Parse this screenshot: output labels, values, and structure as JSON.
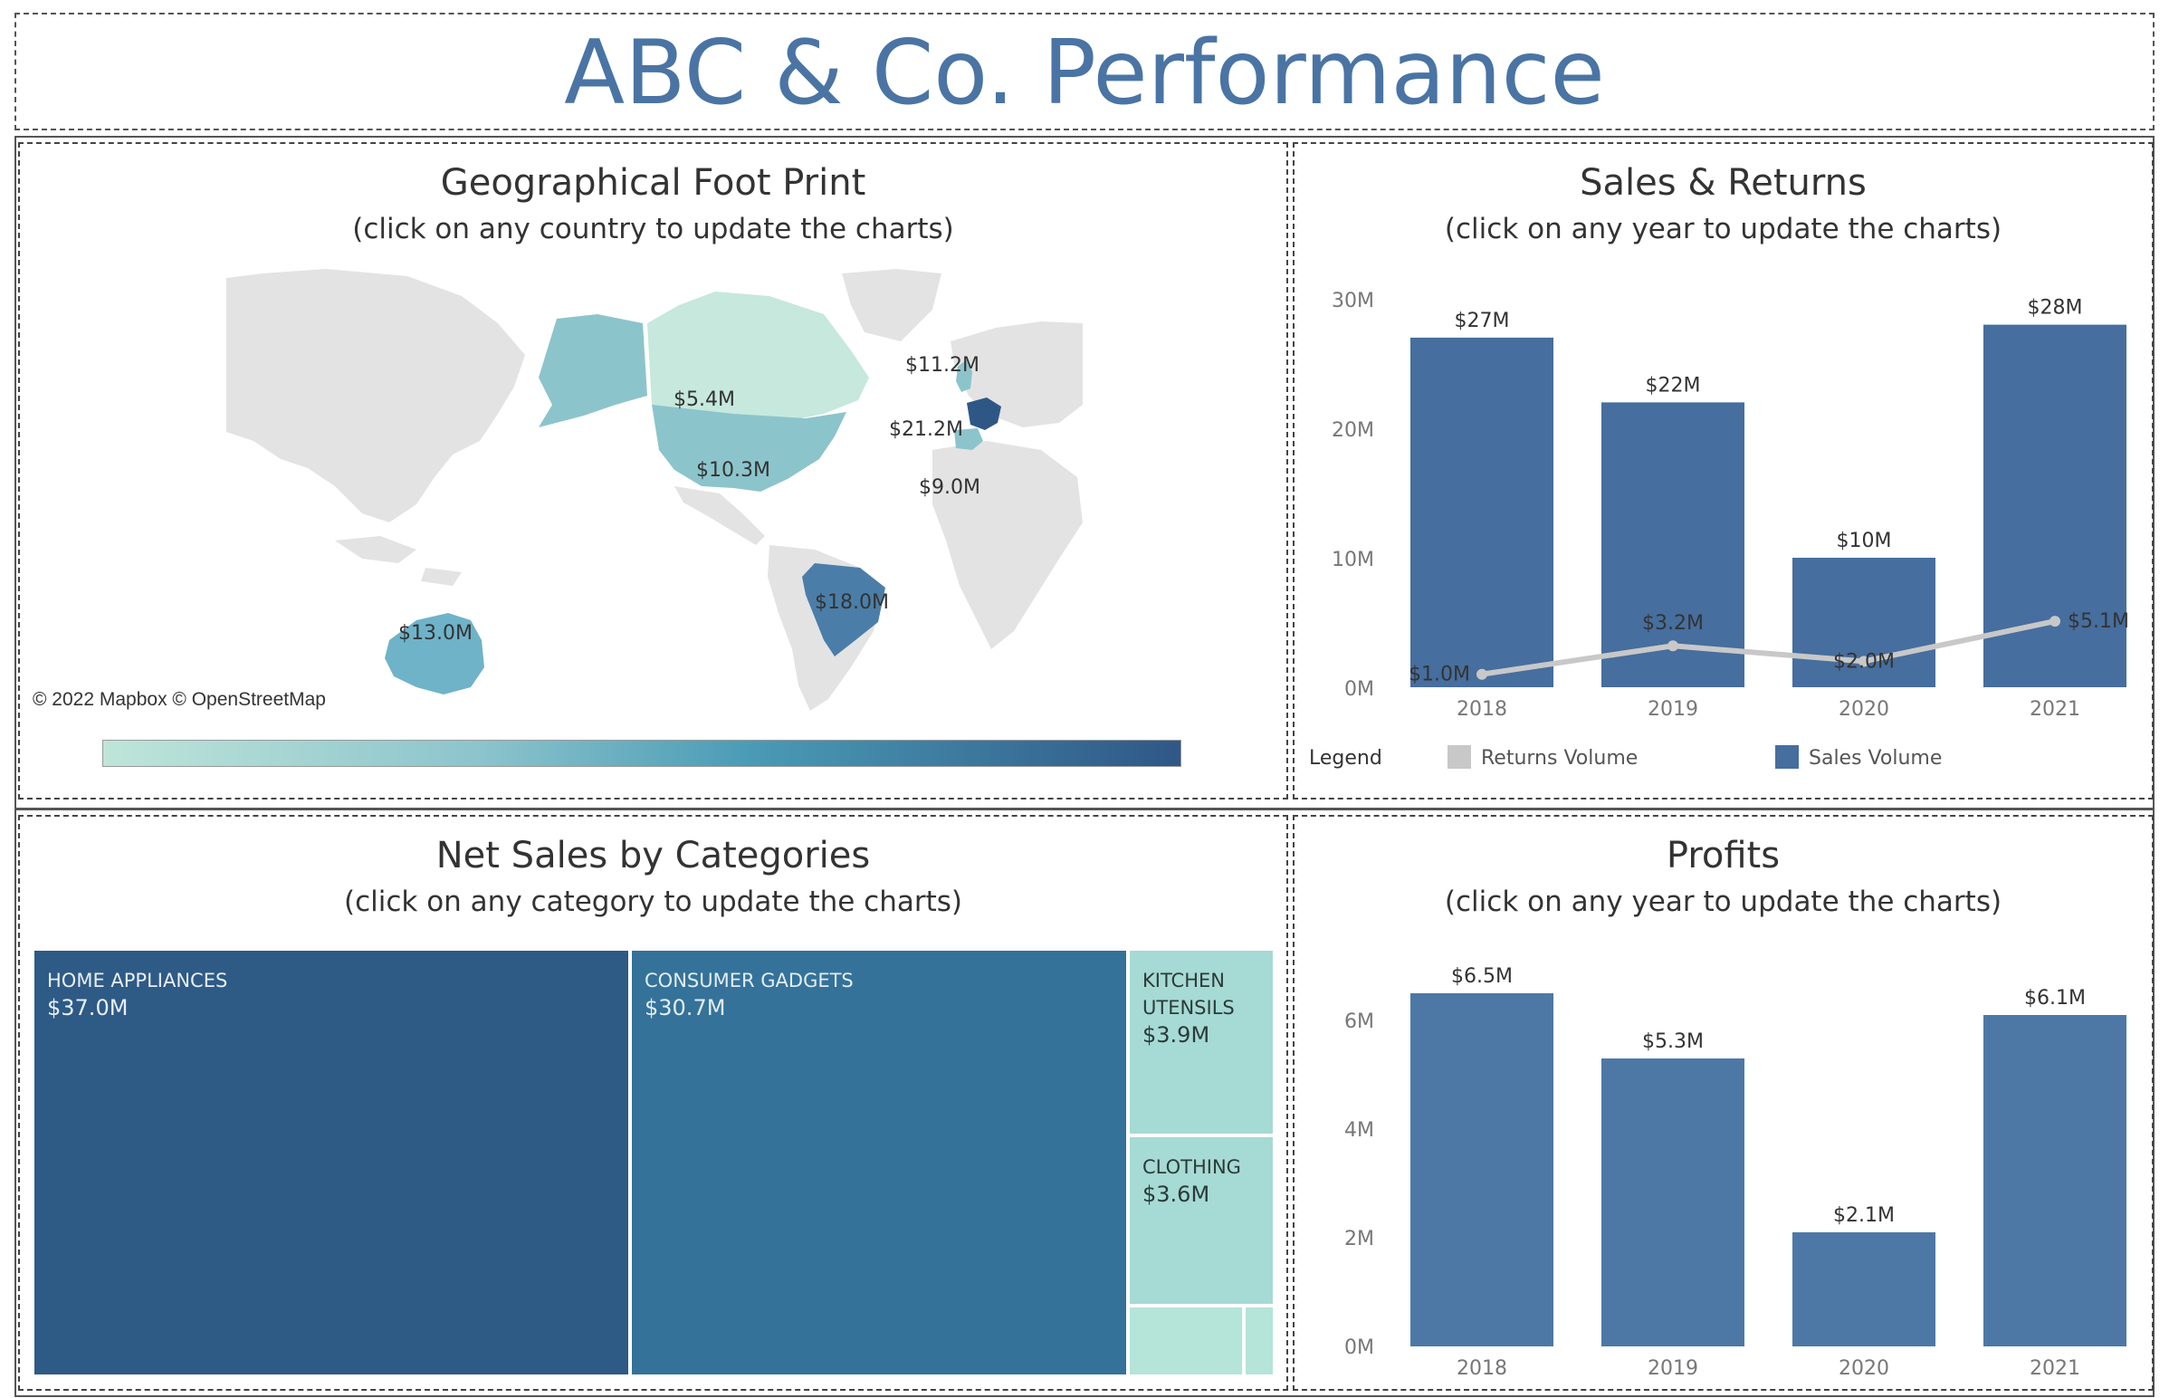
{
  "dashboard": {
    "title": "ABC & Co. Performance"
  },
  "geo": {
    "title": "Geographical Foot Print",
    "subtitle": "(click on any country to update the charts)",
    "credit": "© 2022 Mapbox © OpenStreetMap",
    "labels": [
      "$11.2M",
      "$5.4M",
      "$21.2M",
      "$10.3M",
      "$9.0M",
      "$18.0M",
      "$13.0M"
    ],
    "scale_colors": [
      "#bfe5d9",
      "#8cc4cc",
      "#4a9bb5",
      "#2f5786"
    ]
  },
  "sales_returns": {
    "title": "Sales & Returns",
    "subtitle": "(click on any year to update the charts)",
    "legend_title": "Legend",
    "legend_items": [
      "Returns Volume",
      "Sales Volume"
    ],
    "colors": {
      "sales": "#466e9e",
      "returns": "#c8c8c8"
    }
  },
  "categories": {
    "title": "Net Sales by Categories",
    "subtitle": "(click on any category to update the charts)",
    "items": [
      {
        "name": "HOME APPLIANCES",
        "value": "$37.0M",
        "color": "#2e5a86",
        "text_color": "#e8eef5"
      },
      {
        "name": "CONSUMER GADGETS",
        "value": "$30.7M",
        "color": "#34729a",
        "text_color": "#e3edf3"
      },
      {
        "name": "KITCHEN UTENSILS",
        "value": "$3.9M",
        "color": "#a6dad4",
        "text_color": "#2a3a3a"
      },
      {
        "name": "CLOTHING",
        "value": "$3.6M",
        "color": "#a6dad4",
        "text_color": "#2a3a3a"
      }
    ],
    "small_colors": [
      "#b5e4d8",
      "#b5e4d8"
    ]
  },
  "profits": {
    "title": "Profits",
    "subtitle": "(click on any year to update the charts)",
    "color": "#4d78a6"
  },
  "chart_data": [
    {
      "type": "bar",
      "title": "Sales & Returns",
      "categories": [
        "2018",
        "2019",
        "2020",
        "2021"
      ],
      "series": [
        {
          "name": "Sales Volume",
          "type": "bar",
          "values": [
            27,
            22,
            10,
            28
          ],
          "labels": [
            "$27M",
            "$22M",
            "$10M",
            "$28M"
          ]
        },
        {
          "name": "Returns Volume",
          "type": "line",
          "values": [
            1.0,
            3.2,
            2.0,
            5.1
          ],
          "labels": [
            "$1.0M",
            "$3.2M",
            "$2.0M",
            "$5.1M"
          ]
        }
      ],
      "yticks": [
        "0M",
        "10M",
        "20M",
        "30M"
      ],
      "ylim": [
        0,
        30
      ],
      "legend": "bottom"
    },
    {
      "type": "bar",
      "title": "Profits",
      "categories": [
        "2018",
        "2019",
        "2020",
        "2021"
      ],
      "values": [
        6.5,
        5.3,
        2.1,
        6.1
      ],
      "labels": [
        "$6.5M",
        "$5.3M",
        "$2.1M",
        "$6.1M"
      ],
      "yticks": [
        "0M",
        "2M",
        "4M",
        "6M"
      ],
      "ylim": [
        0,
        6.5
      ]
    }
  ]
}
